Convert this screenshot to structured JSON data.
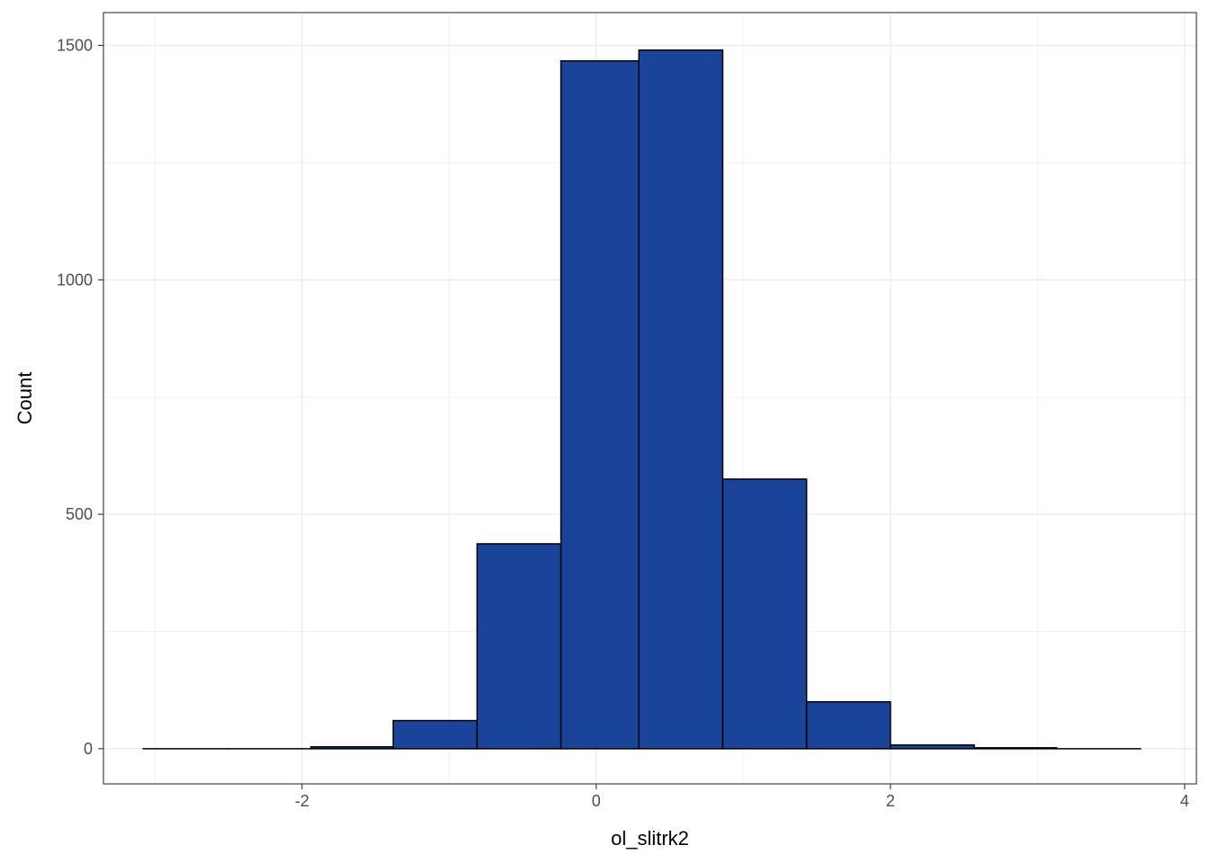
{
  "chart_data": {
    "type": "bar",
    "subtype": "histogram",
    "xlabel": "ol_slitrk2",
    "ylabel": "Count",
    "xlim": [
      -3.35,
      4.08
    ],
    "ylim": [
      -75,
      1570
    ],
    "x_ticks": [
      -2,
      0,
      2,
      4
    ],
    "x_tick_labels": [
      "-2",
      "0",
      "2",
      "4"
    ],
    "y_ticks": [
      0,
      500,
      1000,
      1500
    ],
    "y_tick_labels": [
      "0",
      "500",
      "1000",
      "1500"
    ],
    "grid": true,
    "legend": "none",
    "fill_color": "#1a4499",
    "border_color": "#000000",
    "bins": [
      {
        "x0": -3.08,
        "x1": -2.51,
        "count": 0
      },
      {
        "x0": -2.51,
        "x1": -1.94,
        "count": 0
      },
      {
        "x0": -1.94,
        "x1": -1.38,
        "count": 4
      },
      {
        "x0": -1.38,
        "x1": -0.81,
        "count": 60
      },
      {
        "x0": -0.81,
        "x1": -0.24,
        "count": 437
      },
      {
        "x0": -0.24,
        "x1": 0.29,
        "count": 1467
      },
      {
        "x0": 0.29,
        "x1": 0.86,
        "count": 1490
      },
      {
        "x0": 0.86,
        "x1": 1.43,
        "count": 575
      },
      {
        "x0": 1.43,
        "x1": 2.0,
        "count": 100
      },
      {
        "x0": 2.0,
        "x1": 2.57,
        "count": 8
      },
      {
        "x0": 2.57,
        "x1": 3.13,
        "count": 2
      },
      {
        "x0": 3.13,
        "x1": 3.7,
        "count": 0
      }
    ]
  }
}
